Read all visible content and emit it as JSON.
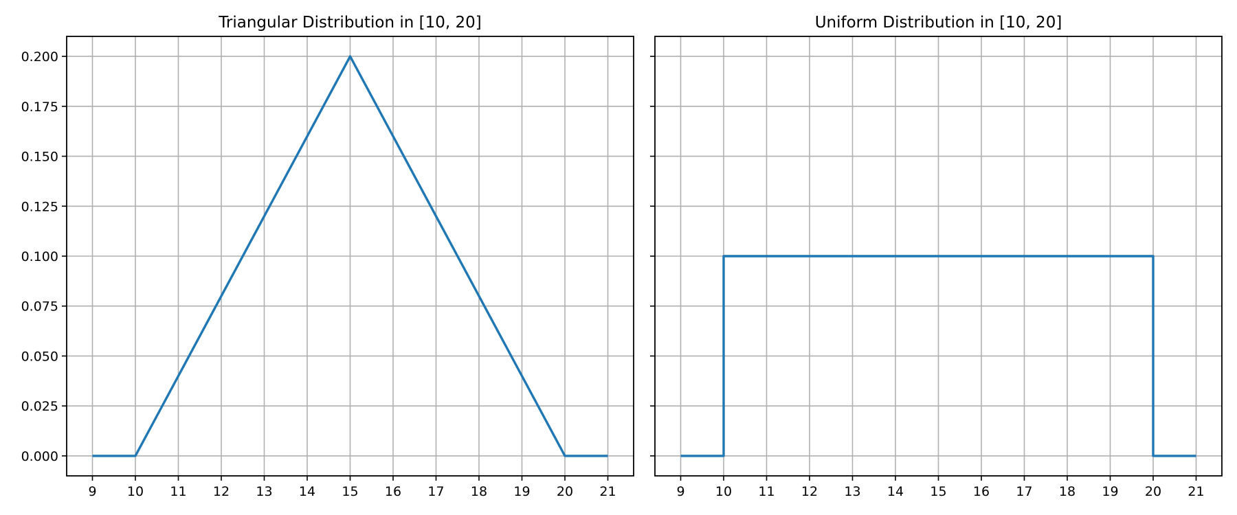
{
  "chart_data": [
    {
      "type": "line",
      "title": "Triangular Distribution in [10, 20]",
      "xlabel": "",
      "ylabel": "",
      "xlim": [
        8.4,
        21.6
      ],
      "ylim": [
        -0.01,
        0.21
      ],
      "xticks": [
        9,
        10,
        11,
        12,
        13,
        14,
        15,
        16,
        17,
        18,
        19,
        20,
        21
      ],
      "yticks": [
        0.0,
        0.025,
        0.05,
        0.075,
        0.1,
        0.125,
        0.15,
        0.175,
        0.2
      ],
      "ytick_labels": [
        "0.000",
        "0.025",
        "0.050",
        "0.075",
        "0.100",
        "0.125",
        "0.150",
        "0.175",
        "0.200"
      ],
      "show_y_labels": true,
      "grid": true,
      "series": [
        {
          "color": "#1f77b4",
          "x": [
            9,
            10,
            15,
            20,
            21
          ],
          "y": [
            0.0,
            0.0,
            0.2,
            0.0,
            0.0
          ]
        }
      ]
    },
    {
      "type": "line",
      "title": "Uniform Distribution in [10, 20]",
      "xlabel": "",
      "ylabel": "",
      "xlim": [
        8.4,
        21.6
      ],
      "ylim": [
        -0.01,
        0.21
      ],
      "xticks": [
        9,
        10,
        11,
        12,
        13,
        14,
        15,
        16,
        17,
        18,
        19,
        20,
        21
      ],
      "yticks": [
        0.0,
        0.025,
        0.05,
        0.075,
        0.1,
        0.125,
        0.15,
        0.175,
        0.2
      ],
      "ytick_labels": [
        "0.000",
        "0.025",
        "0.050",
        "0.075",
        "0.100",
        "0.125",
        "0.150",
        "0.175",
        "0.200"
      ],
      "show_y_labels": false,
      "grid": true,
      "series": [
        {
          "color": "#1f77b4",
          "x": [
            9,
            10,
            10,
            20,
            20,
            21
          ],
          "y": [
            0.0,
            0.0,
            0.1,
            0.1,
            0.0,
            0.0
          ]
        }
      ]
    }
  ]
}
